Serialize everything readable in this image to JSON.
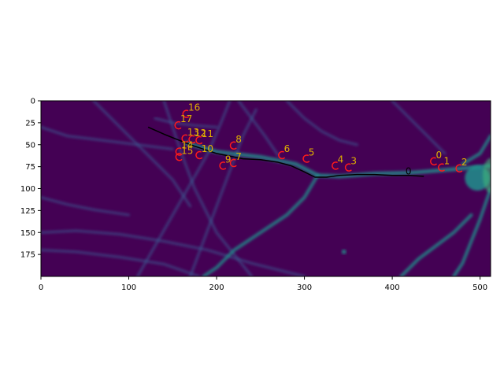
{
  "chart_data": {
    "type": "scatter",
    "title": "",
    "xlabel": "",
    "ylabel": "",
    "xlim": [
      0,
      512
    ],
    "ylim": [
      200,
      0
    ],
    "x_ticks": [
      0,
      100,
      200,
      300,
      400,
      500
    ],
    "y_ticks": [
      0,
      25,
      50,
      75,
      100,
      125,
      150,
      175
    ],
    "background": "grayscale microscopy image of branching neurites shown with the viridis colormap",
    "colors": {
      "image_base": "#440154",
      "neurite_faint": "#3b528b",
      "neurite_bright": "#21918c",
      "trace_line": "#000000",
      "marker_edge": "#ff1a1a",
      "label_text": "#e0b000"
    },
    "trace": {
      "label": "0",
      "label_x": 415,
      "label_y": 84,
      "x": [
        122,
        140,
        155,
        170,
        185,
        200,
        215,
        230,
        250,
        270,
        285,
        300,
        312,
        325,
        340,
        360,
        380,
        400,
        420,
        436
      ],
      "y": [
        30,
        38,
        44,
        50,
        55,
        60,
        63,
        66,
        67,
        70,
        74,
        81,
        87,
        87,
        85,
        84,
        84,
        85,
        85,
        86
      ]
    },
    "markers": [
      {
        "label": "0",
        "x": 447,
        "y": 69
      },
      {
        "label": "1",
        "x": 456,
        "y": 76
      },
      {
        "label": "2",
        "x": 476,
        "y": 77
      },
      {
        "label": "3",
        "x": 350,
        "y": 76
      },
      {
        "label": "4",
        "x": 335,
        "y": 74
      },
      {
        "label": "5",
        "x": 302,
        "y": 66
      },
      {
        "label": "6",
        "x": 274,
        "y": 62
      },
      {
        "label": "7",
        "x": 219,
        "y": 71
      },
      {
        "label": "8",
        "x": 219,
        "y": 51
      },
      {
        "label": "9",
        "x": 207,
        "y": 74
      },
      {
        "label": "10",
        "x": 180,
        "y": 62
      },
      {
        "label": "11",
        "x": 180,
        "y": 45
      },
      {
        "label": "12",
        "x": 172,
        "y": 44
      },
      {
        "label": "13",
        "x": 164,
        "y": 43
      },
      {
        "label": "14",
        "x": 157,
        "y": 58
      },
      {
        "label": "15",
        "x": 157,
        "y": 64
      },
      {
        "label": "16",
        "x": 165,
        "y": 15
      },
      {
        "label": "17",
        "x": 156,
        "y": 28
      }
    ]
  }
}
